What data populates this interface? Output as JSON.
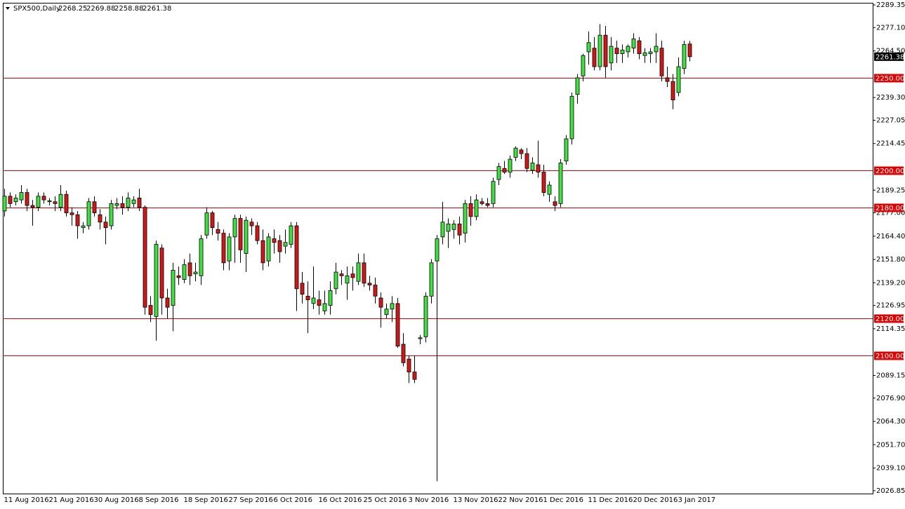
{
  "chart_data": {
    "type": "candlestick",
    "title": "SPX500,Daily",
    "up_color": "#3fe03f",
    "down_color": "#d01818",
    "level_color": "#e00000",
    "ylim": [
      2025.3,
      2290.5
    ],
    "yticks": [
      2289.35,
      {
        "value": 2277.1,
        "label": "2277.10"
      },
      {
        "value": 2264.5,
        "label": "2264.50"
      },
      {
        "value": 2239.3,
        "label": "2239.30"
      },
      2227.05,
      2214.45,
      2189.25,
      {
        "value": 2177,
        "label": "2177.00"
      },
      {
        "value": 2164.4,
        "label": "2164.40"
      },
      {
        "value": 2151.8,
        "label": "2151.80"
      },
      {
        "value": 2139.2,
        "label": "2139.20"
      },
      2126.95,
      2114.35,
      2089.15,
      {
        "value": 2076.9,
        "label": "2076.90"
      },
      {
        "value": 2064.3,
        "label": "2064.30"
      },
      {
        "value": 2051.7,
        "label": "2051.70"
      },
      {
        "value": 2039.1,
        "label": "2039.10"
      },
      2026.85
    ],
    "levels": [
      {
        "value": 2250,
        "label": "2250.00"
      },
      {
        "value": 2200,
        "label": "2200.00"
      },
      {
        "value": 2180,
        "label": "2180.00"
      },
      {
        "value": 2120,
        "label": "2120.00"
      },
      {
        "value": 2100,
        "label": "2100.00"
      }
    ],
    "categories": [
      "11 Aug 2016",
      null,
      null,
      null,
      null,
      null,
      null,
      null,
      "21 Aug 2016",
      null,
      null,
      null,
      null,
      null,
      null,
      null,
      "30 Aug 2016",
      null,
      null,
      null,
      null,
      null,
      null,
      null,
      "8 Sep 2016",
      null,
      null,
      null,
      null,
      null,
      null,
      null,
      "18 Sep 2016",
      null,
      null,
      null,
      null,
      null,
      null,
      null,
      "27 Sep 2016",
      null,
      null,
      null,
      null,
      null,
      null,
      null,
      "6 Oct 2016",
      null,
      null,
      null,
      null,
      null,
      null,
      null,
      "16 Oct 2016",
      null,
      null,
      null,
      null,
      null,
      null,
      null,
      "25 Oct 2016",
      null,
      null,
      null,
      null,
      null,
      null,
      null,
      "3 Nov 2016",
      null,
      null,
      null,
      null,
      null,
      null,
      null,
      "13 Nov 2016",
      null,
      null,
      null,
      null,
      null,
      null,
      null,
      "22 Nov 2016",
      null,
      null,
      null,
      null,
      null,
      null,
      null,
      "1 Dec 2016",
      null,
      null,
      null,
      null,
      null,
      null,
      null,
      "11 Dec 2016",
      null,
      null,
      null,
      null,
      null,
      null,
      null,
      "20 Dec 2016",
      null,
      null,
      null,
      null,
      null,
      null,
      null,
      "3 Jan 2017",
      null,
      null
    ],
    "open": [
      2178,
      2186,
      2183,
      2184,
      2188,
      2181,
      2180,
      2186,
      2183,
      2183,
      2180,
      2187,
      2177,
      2176,
      2169,
      2170,
      2183,
      2176,
      2172,
      2170,
      2181,
      2182,
      2180,
      2182,
      2185,
      2180,
      2127,
      2121,
      2158,
      2131,
      2127,
      2143,
      2141,
      2150,
      2144,
      2143,
      2165,
      2177,
      2168,
      2166,
      2151,
      2164,
      2174,
      2155,
      2172,
      2170,
      2162,
      2151,
      2163,
      2162,
      2159,
      2160,
      2170,
      2139,
      2132,
      2128,
      2130,
      2124,
      2127,
      2136,
      2144,
      2139,
      2144,
      2140,
      2150,
      2139,
      2138,
      2131,
      2122,
      2125,
      2128,
      2106,
      2098,
      2091,
      2109,
      2110,
      2132,
      2151,
      2164,
      2167,
      2168,
      2171,
      2166,
      2182,
      2175,
      2183,
      2182,
      2182,
      2195,
      2201,
      2199,
      2207,
      2211,
      2209,
      2200,
      2203,
      2199,
      2187,
      2183,
      2182,
      2205,
      2217,
      2241,
      2251,
      2264,
      2266,
      2256,
      2273,
      2258,
      2266,
      2263,
      2264,
      2266,
      2270,
      2262,
      2263,
      2264,
      2266,
      2250,
      2248,
      2242,
      2255,
      2268.25
    ],
    "high": [
      2190,
      2188,
      2187,
      2192,
      2190,
      2184,
      2188,
      2188,
      2185,
      2186,
      2192,
      2189,
      2180,
      2178,
      2172,
      2185,
      2186,
      2179,
      2175,
      2184,
      2185,
      2186,
      2188,
      2186,
      2190,
      2181,
      2132,
      2162,
      2160,
      2136,
      2150,
      2148,
      2152,
      2155,
      2150,
      2165,
      2180,
      2178,
      2172,
      2168,
      2166,
      2176,
      2176,
      2175,
      2174,
      2172,
      2168,
      2166,
      2168,
      2165,
      2168,
      2172,
      2172,
      2145,
      2140,
      2148,
      2135,
      2135,
      2140,
      2150,
      2146,
      2148,
      2148,
      2155,
      2155,
      2143,
      2142,
      2134,
      2128,
      2132,
      2131,
      2112,
      2100,
      2100,
      2111,
      2134,
      2152,
      2165,
      2183,
      2174,
      2173,
      2175,
      2184,
      2186,
      2187,
      2185,
      2185,
      2196,
      2204,
      2205,
      2208,
      2213,
      2212,
      2212,
      2207,
      2216,
      2203,
      2194,
      2186,
      2206,
      2219,
      2242,
      2252,
      2263,
      2275,
      2272,
      2279,
      2278,
      2272,
      2270,
      2268,
      2268,
      2274,
      2272,
      2266,
      2266,
      2274,
      2270,
      2256,
      2252,
      2261,
      2270,
      2269.88
    ],
    "low": [
      2175,
      2180,
      2181,
      2182,
      2178,
      2170,
      2178,
      2182,
      2181,
      2178,
      2178,
      2175,
      2170,
      2163,
      2166,
      2168,
      2175,
      2168,
      2160,
      2168,
      2179,
      2176,
      2178,
      2180,
      2178,
      2122,
      2118,
      2108,
      2122,
      2120,
      2113,
      2138,
      2139,
      2138,
      2140,
      2138,
      2163,
      2165,
      2162,
      2146,
      2146,
      2150,
      2150,
      2145,
      2165,
      2160,
      2146,
      2148,
      2155,
      2150,
      2155,
      2158,
      2124,
      2128,
      2112,
      2125,
      2122,
      2122,
      2122,
      2133,
      2138,
      2130,
      2135,
      2138,
      2137,
      2135,
      2128,
      2115,
      2120,
      2118,
      2104,
      2094,
      2085,
      2085,
      2106,
      2107,
      2128,
      2032,
      2160,
      2158,
      2163,
      2160,
      2161,
      2170,
      2173,
      2181,
      2180,
      2180,
      2192,
      2198,
      2196,
      2205,
      2206,
      2199,
      2198,
      2196,
      2186,
      2183,
      2178,
      2180,
      2203,
      2214,
      2236,
      2248,
      2257,
      2254,
      2254,
      2250,
      2254,
      2258,
      2258,
      2261,
      2263,
      2260,
      2258,
      2258,
      2258,
      2248,
      2245,
      2233,
      2240,
      2252,
      2258.88
    ],
    "close": [
      2186,
      2182,
      2185,
      2188,
      2181,
      2180,
      2186,
      2184,
      2183.5,
      2182,
      2187,
      2177,
      2176,
      2170,
      2170,
      2183,
      2177,
      2172,
      2169,
      2182,
      2182,
      2180,
      2185,
      2184,
      2180,
      2126,
      2122,
      2160,
      2131,
      2126,
      2146,
      2142,
      2149,
      2143,
      2145,
      2163,
      2177,
      2169,
      2166,
      2150,
      2164,
      2174,
      2157,
      2173,
      2170,
      2162,
      2150,
      2164,
      2161,
      2156,
      2161,
      2170,
      2136,
      2133,
      2130,
      2131,
      2127,
      2128,
      2135,
      2145,
      2143,
      2143,
      2142,
      2150,
      2139,
      2138,
      2132,
      2126,
      2125,
      2128,
      2105,
      2096,
      2091,
      2087,
      2109.5,
      2132,
      2150,
      2163,
      2172,
      2171,
      2171,
      2165,
      2182,
      2175,
      2184,
      2182,
      2181,
      2194,
      2202,
      2199,
      2206,
      2212,
      2209,
      2201,
      2204,
      2199,
      2188,
      2192,
      2181,
      2204,
      2217,
      2240,
      2250,
      2262,
      2269,
      2256,
      2273,
      2256,
      2267,
      2263,
      2265,
      2267,
      2271,
      2263,
      2263.5,
      2264,
      2267,
      2251,
      2248,
      2238,
      2256,
      2268,
      2261.38
    ]
  }
}
